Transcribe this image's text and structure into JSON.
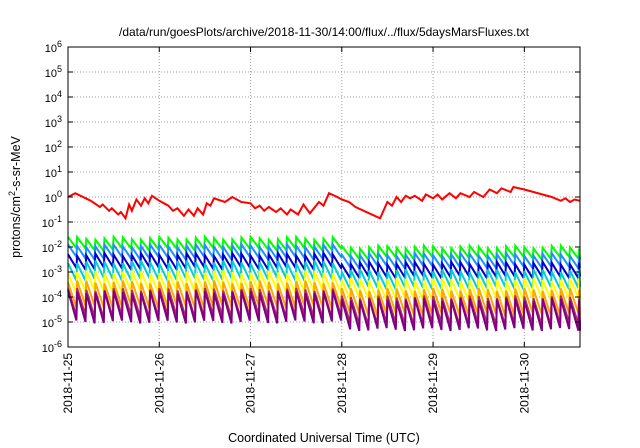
{
  "chart_data": {
    "type": "line",
    "title": "/data/run/goesPlots/archive/2018-11-30/14:00/flux/../flux/5daysMarsFluxes.txt",
    "xlabel": "Coordinated Universal Time (UTC)",
    "ylabel": "protons/cm²-s-sr-MeV",
    "ylabel_base": "protons/cm",
    "ylabel_sup": "2",
    "ylabel_rest": "-s-sr-MeV",
    "yscale": "log",
    "ylim_exp": [
      -6,
      6
    ],
    "y_tick_labels": [
      {
        "exp": -6,
        "base": "10",
        "sup": "-6"
      },
      {
        "exp": -5,
        "base": "10",
        "sup": "-5"
      },
      {
        "exp": -4,
        "base": "10",
        "sup": "-4"
      },
      {
        "exp": -3,
        "base": "10",
        "sup": "-3"
      },
      {
        "exp": -2,
        "base": "10",
        "sup": "-2"
      },
      {
        "exp": -1,
        "base": "10",
        "sup": "-1"
      },
      {
        "exp": 0,
        "base": "10",
        "sup": "0"
      },
      {
        "exp": 1,
        "base": "10",
        "sup": "1"
      },
      {
        "exp": 2,
        "base": "10",
        "sup": "2"
      },
      {
        "exp": 3,
        "base": "10",
        "sup": "3"
      },
      {
        "exp": 4,
        "base": "10",
        "sup": "4"
      },
      {
        "exp": 5,
        "base": "10",
        "sup": "5"
      },
      {
        "exp": 6,
        "base": "10",
        "sup": "6"
      }
    ],
    "x_range_days": [
      0,
      5.61
    ],
    "x_ticks": [
      {
        "day": 0,
        "label": "2018-11-25"
      },
      {
        "day": 1,
        "label": "2018-11-26"
      },
      {
        "day": 2,
        "label": "2018-11-27"
      },
      {
        "day": 3,
        "label": "2018-11-28"
      },
      {
        "day": 4,
        "label": "2018-11-29"
      },
      {
        "day": 5,
        "label": "2018-11-30"
      }
    ],
    "grid": true,
    "series": [
      {
        "color": "#ff0000",
        "sawtooth": false,
        "points": [
          [
            0,
            0.0
          ],
          [
            0.08,
            0.15
          ],
          [
            0.25,
            -0.15
          ],
          [
            0.35,
            -0.4
          ],
          [
            0.38,
            -0.3
          ],
          [
            0.45,
            -0.55
          ],
          [
            0.48,
            -0.45
          ],
          [
            0.55,
            -0.7
          ],
          [
            0.58,
            -0.6
          ],
          [
            0.63,
            -0.85
          ],
          [
            0.67,
            -0.3
          ],
          [
            0.7,
            -0.55
          ],
          [
            0.75,
            -0.1
          ],
          [
            0.8,
            -0.35
          ],
          [
            0.84,
            -0.05
          ],
          [
            0.88,
            -0.25
          ],
          [
            0.92,
            0.05
          ],
          [
            1.0,
            -0.15
          ],
          [
            1.1,
            -0.35
          ],
          [
            1.15,
            -0.55
          ],
          [
            1.2,
            -0.45
          ],
          [
            1.27,
            -0.75
          ],
          [
            1.32,
            -0.5
          ],
          [
            1.38,
            -0.75
          ],
          [
            1.42,
            -0.45
          ],
          [
            1.48,
            -0.7
          ],
          [
            1.52,
            -0.25
          ],
          [
            1.56,
            -0.35
          ],
          [
            1.6,
            -0.05
          ],
          [
            1.72,
            -0.2
          ],
          [
            1.8,
            0.0
          ],
          [
            1.9,
            -0.2
          ],
          [
            2.0,
            -0.25
          ],
          [
            2.05,
            -0.45
          ],
          [
            2.1,
            -0.35
          ],
          [
            2.15,
            -0.55
          ],
          [
            2.2,
            -0.4
          ],
          [
            2.28,
            -0.6
          ],
          [
            2.33,
            -0.45
          ],
          [
            2.4,
            -0.7
          ],
          [
            2.44,
            -0.5
          ],
          [
            2.52,
            -0.7
          ],
          [
            2.58,
            -0.3
          ],
          [
            2.65,
            -0.65
          ],
          [
            2.75,
            -0.2
          ],
          [
            2.8,
            -0.35
          ],
          [
            2.86,
            0.15
          ],
          [
            2.95,
            0.0
          ],
          [
            3.0,
            -0.1
          ],
          [
            3.08,
            -0.2
          ],
          [
            3.15,
            -0.4
          ],
          [
            3.3,
            -0.65
          ],
          [
            3.42,
            -0.85
          ],
          [
            3.45,
            -0.6
          ],
          [
            3.5,
            -0.2
          ],
          [
            3.55,
            -0.35
          ],
          [
            3.6,
            0.0
          ],
          [
            3.65,
            -0.2
          ],
          [
            3.7,
            0.05
          ],
          [
            3.75,
            -0.05
          ],
          [
            3.8,
            0.05
          ],
          [
            3.88,
            -0.15
          ],
          [
            3.92,
            0.1
          ],
          [
            4.0,
            -0.05
          ],
          [
            4.05,
            0.1
          ],
          [
            4.1,
            -0.1
          ],
          [
            4.18,
            0.15
          ],
          [
            4.25,
            -0.05
          ],
          [
            4.3,
            0.15
          ],
          [
            4.4,
            0.0
          ],
          [
            4.45,
            0.2
          ],
          [
            4.55,
            0.0
          ],
          [
            4.62,
            0.3
          ],
          [
            4.7,
            0.15
          ],
          [
            4.75,
            0.35
          ],
          [
            4.85,
            0.2
          ],
          [
            4.88,
            0.4
          ],
          [
            5.0,
            0.3
          ],
          [
            5.1,
            0.2
          ],
          [
            5.2,
            0.1
          ],
          [
            5.3,
            0.0
          ],
          [
            5.4,
            -0.15
          ],
          [
            5.45,
            -0.05
          ],
          [
            5.5,
            -0.2
          ],
          [
            5.55,
            -0.1
          ],
          [
            5.61,
            -0.15
          ]
        ]
      },
      {
        "color": "#00ff00",
        "sawtooth": true,
        "top_exp": -1.65,
        "drop": 0.45,
        "step_shift_exp": -0.35
      },
      {
        "color": "#1e90ff",
        "sawtooth": true,
        "top_exp": -1.95,
        "drop": 0.5,
        "step_shift_exp": -0.35
      },
      {
        "color": "#0000cd",
        "sawtooth": true,
        "top_exp": -2.3,
        "drop": 0.55,
        "step_shift_exp": -0.35
      },
      {
        "color": "#00ced1",
        "sawtooth": true,
        "top_exp": -2.6,
        "drop": 0.7,
        "step_shift_exp": -0.35
      },
      {
        "color": "#ffff00",
        "sawtooth": true,
        "top_exp": -3.0,
        "drop": 0.8,
        "step_shift_exp": -0.3
      },
      {
        "color": "#ffa500",
        "sawtooth": true,
        "top_exp": -3.4,
        "drop": 1.0,
        "step_shift_exp": -0.3
      },
      {
        "color": "#b03060",
        "sawtooth": true,
        "top_exp": -3.7,
        "drop": 1.1,
        "step_shift_exp": -0.3
      },
      {
        "color": "#800080",
        "sawtooth": true,
        "top_exp": -3.8,
        "drop": 1.2,
        "step_shift_exp": -0.3
      }
    ],
    "sawtooth_period_days": 0.1,
    "step_day": 3.0
  }
}
